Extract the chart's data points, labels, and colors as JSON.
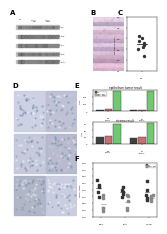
{
  "fig_bg": "#ffffff",
  "panel_label_fontsize": 5,
  "bar_e_groups": [
    "WT",
    "SDHA Het",
    "SDHA Hom"
  ],
  "bar_e_colors": [
    "#404040",
    "#c87070",
    "#70c870"
  ],
  "scatter_f_wt_color": "#333333",
  "scatter_f_ko_color": "#888888",
  "scatter_f_ylabel": "SDHA score",
  "scatter_f_xlabels": [
    "Early",
    "Late",
    "4-16w"
  ]
}
